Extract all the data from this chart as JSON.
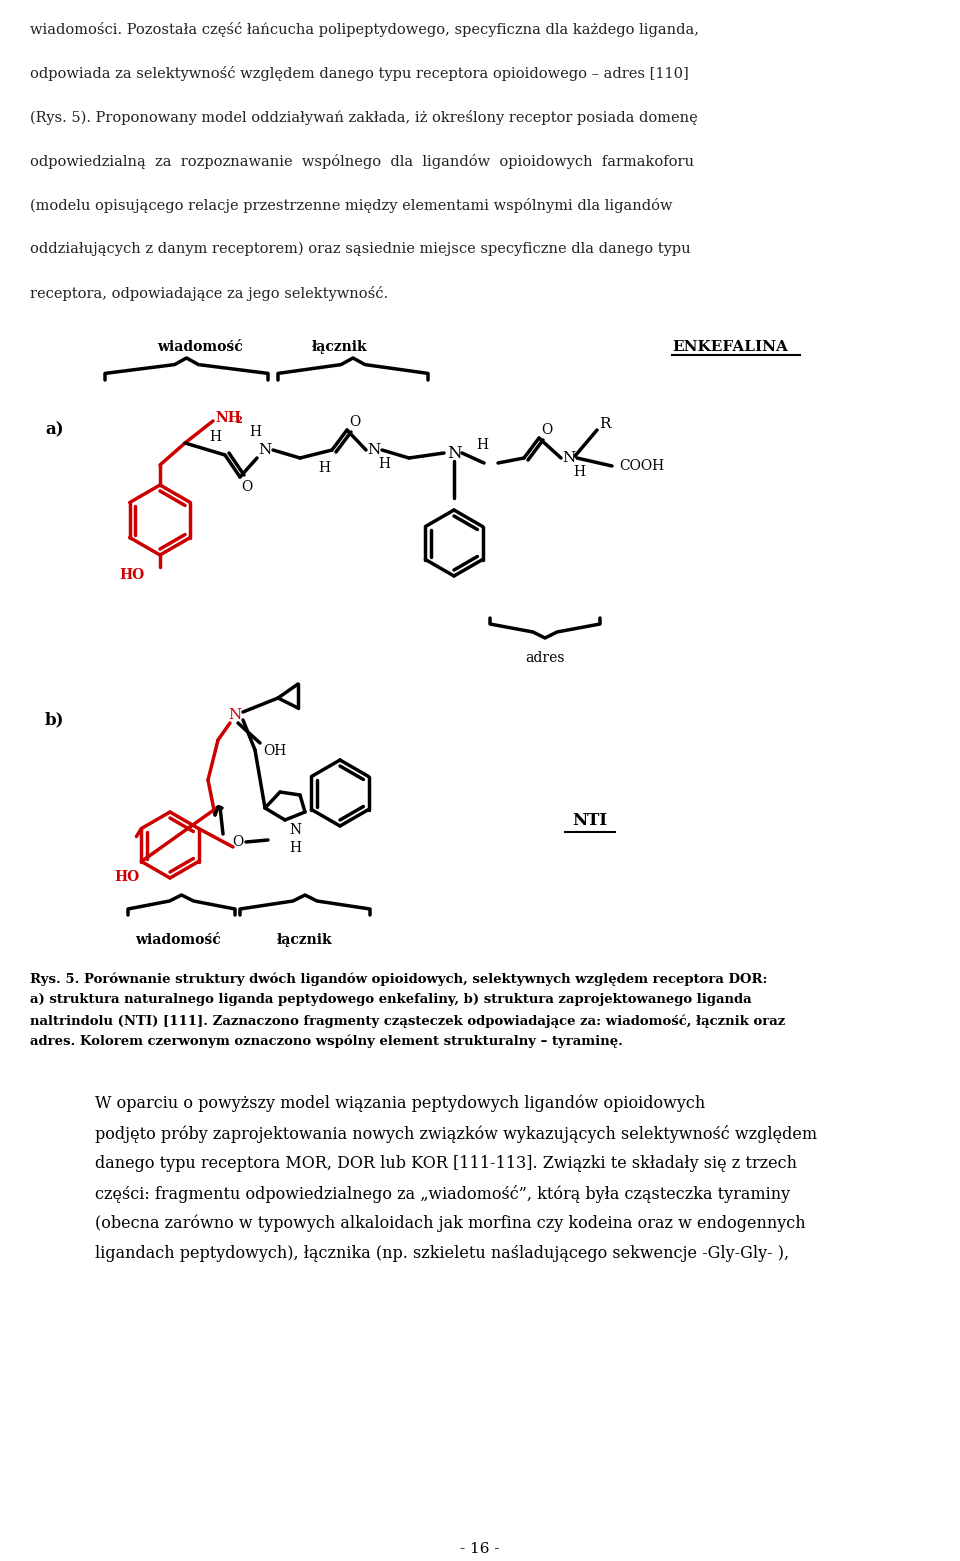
{
  "bg_color": "#ffffff",
  "text_color": "#000000",
  "red_color": "#cc0000",
  "page_width": 9.6,
  "page_height": 15.61,
  "page_number": "- 16 -"
}
